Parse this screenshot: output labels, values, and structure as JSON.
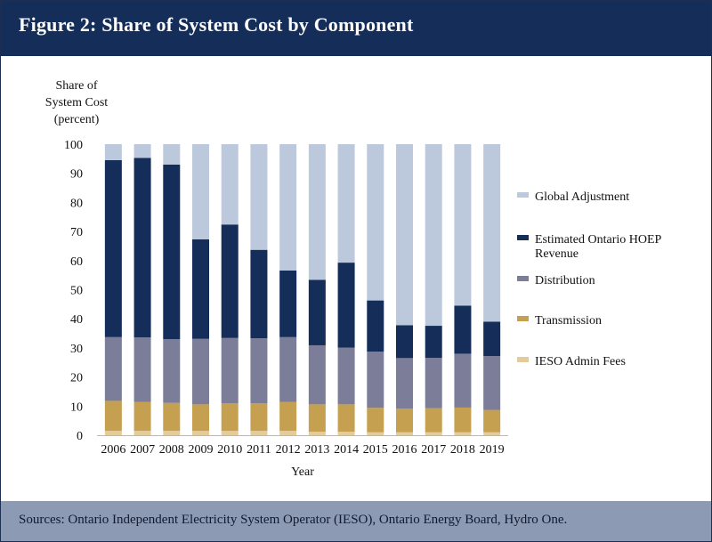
{
  "header": {
    "title": "Figure 2: Share of System Cost by Component"
  },
  "footer": {
    "source": "Sources: Ontario Independent Electricity System Operator (IESO), Ontario Energy Board, Hydro One."
  },
  "colors": {
    "header_bg": "#142d59",
    "footer_bg": "#8c9ab4",
    "global_adjustment": "#bcc8dc",
    "hoep_revenue": "#142d59",
    "distribution": "#7b7d99",
    "transmission": "#c4a050",
    "ieso_admin": "#e4cb98"
  },
  "chart_data": {
    "type": "bar",
    "stacked": true,
    "title": "",
    "ylabel_lines": [
      "Share of",
      "System Cost",
      "(percent)"
    ],
    "xlabel": "Year",
    "ylim": [
      0,
      100
    ],
    "yticks": [
      0,
      10,
      20,
      30,
      40,
      50,
      60,
      70,
      80,
      90,
      100
    ],
    "categories": [
      "2006",
      "2007",
      "2008",
      "2009",
      "2010",
      "2011",
      "2012",
      "2013",
      "2014",
      "2015",
      "2016",
      "2017",
      "2018",
      "2019"
    ],
    "series": [
      {
        "name": "IESO Admin Fees",
        "color_key": "ieso_admin",
        "values": [
          1.5,
          1.5,
          1.5,
          1.5,
          1.5,
          1.5,
          1.5,
          1.2,
          1.2,
          1.0,
          1.0,
          1.0,
          1.0,
          1.0
        ]
      },
      {
        "name": "Transmission",
        "color_key": "transmission",
        "values": [
          10.3,
          9.9,
          9.6,
          9.1,
          9.5,
          9.5,
          9.9,
          9.4,
          9.4,
          8.4,
          8.1,
          8.3,
          8.5,
          7.7
        ]
      },
      {
        "name": "Distribution",
        "color_key": "distribution",
        "values": [
          21.9,
          22.2,
          21.9,
          22.5,
          22.4,
          22.3,
          22.3,
          20.3,
          19.5,
          19.3,
          17.4,
          17.3,
          18.5,
          18.5
        ]
      },
      {
        "name": "Estimated Ontario HOEP Revenue",
        "color_key": "hoep_revenue",
        "values": [
          60.8,
          61.7,
          60.0,
          34.2,
          39.0,
          30.4,
          22.9,
          22.5,
          29.2,
          17.6,
          11.3,
          11.0,
          16.5,
          11.8
        ]
      },
      {
        "name": "Global Adjustment",
        "color_key": "global_adjustment",
        "values": [
          5.5,
          4.7,
          7.0,
          32.7,
          27.6,
          36.3,
          43.4,
          46.6,
          40.7,
          53.7,
          62.2,
          62.4,
          55.5,
          61.0
        ]
      }
    ],
    "legend": {
      "placement": "right",
      "order": [
        {
          "label": "Global Adjustment",
          "color_key": "global_adjustment"
        },
        {
          "label": "Estimated Ontario HOEP Revenue",
          "color_key": "hoep_revenue"
        },
        {
          "label": "Distribution",
          "color_key": "distribution"
        },
        {
          "label": "Transmission",
          "color_key": "transmission"
        },
        {
          "label": "IESO Admin Fees",
          "color_key": "ieso_admin"
        }
      ]
    },
    "grid": false
  }
}
